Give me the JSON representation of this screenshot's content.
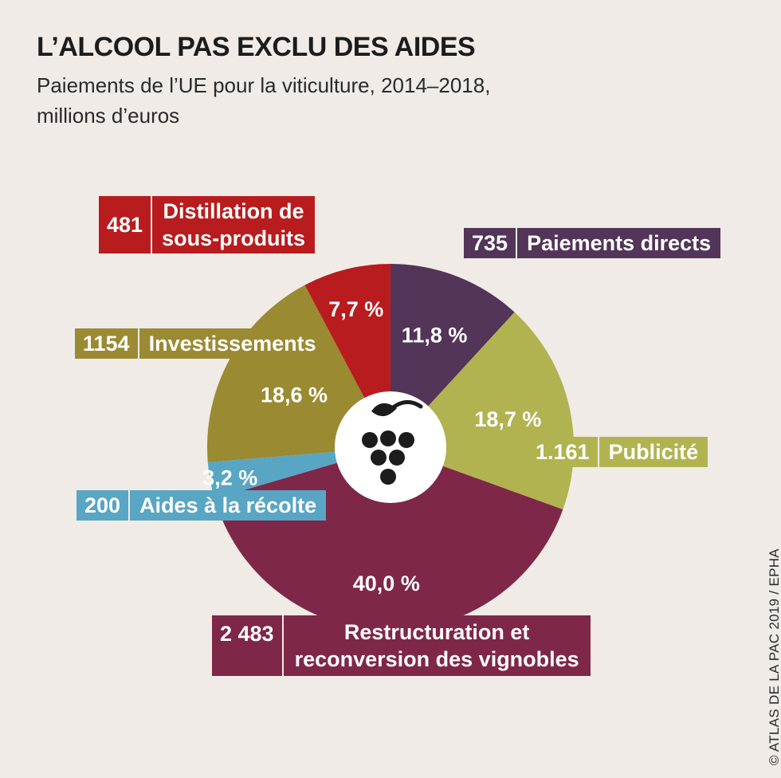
{
  "header": {
    "title": "L’ALCOOL PAS EXCLU DES AIDES",
    "subtitle_line1": "Paiements de l’UE pour la viticulture, 2014–2018,",
    "subtitle_line2": "millions d’euros"
  },
  "credit": "© ATLAS DE LA PAC 2019 / EPHA",
  "center_icon": "grape-icon",
  "chart_data": {
    "type": "pie",
    "title": "L’ALCOOL PAS EXCLU DES AIDES",
    "subtitle": "Paiements de l’UE pour la viticulture, 2014–2018, millions d’euros",
    "slices": [
      {
        "key": "paiements",
        "value_label": "735",
        "value": 735,
        "percent": 11.8,
        "percent_label": "11,8 %",
        "label_lines": [
          "Paiements directs"
        ],
        "color": "#523558"
      },
      {
        "key": "publicite",
        "value_label": "1.161",
        "value": 1161,
        "percent": 18.7,
        "percent_label": "18,7 %",
        "label_lines": [
          "Publicité"
        ],
        "color": "#b1b350"
      },
      {
        "key": "restructuration",
        "value_label": "2 483",
        "value": 2483,
        "percent": 40.0,
        "percent_label": "40,0 %",
        "label_lines": [
          "Restructuration et",
          "reconversion des vignobles"
        ],
        "color": "#7f2748"
      },
      {
        "key": "recolte",
        "value_label": "200",
        "value": 200,
        "percent": 3.2,
        "percent_label": "3,2 %",
        "label_lines": [
          "Aides à la récolte"
        ],
        "color": "#59a5c4"
      },
      {
        "key": "investissements",
        "value_label": "1154",
        "value": 1154,
        "percent": 18.6,
        "percent_label": "18,6 %",
        "label_lines": [
          "Investissements"
        ],
        "color": "#9a8a32"
      },
      {
        "key": "distillation",
        "value_label": "481",
        "value": 481,
        "percent": 7.7,
        "percent_label": "7,7 %",
        "label_lines": [
          "Distillation de",
          "sous-produits"
        ],
        "color": "#b91c1e"
      }
    ]
  }
}
